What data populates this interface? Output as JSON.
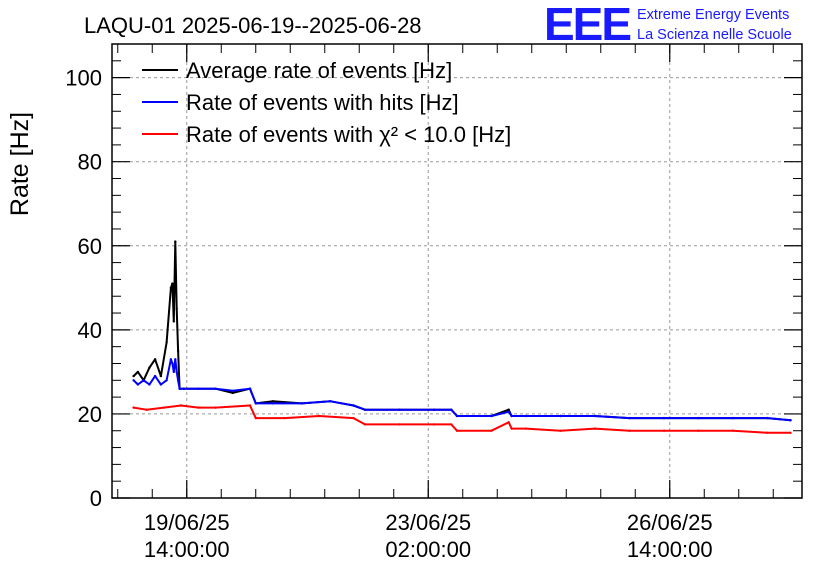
{
  "chart_data": {
    "type": "line",
    "title": "LAQU-01 2025-06-19--2025-06-28",
    "ylabel": "Rate [Hz]",
    "xlabel": "",
    "ylim": [
      0,
      108
    ],
    "yticks": [
      0,
      20,
      40,
      60,
      80,
      100
    ],
    "xlim": [
      "2025-06-18 12:00:00",
      "2025-06-28 12:00:00"
    ],
    "xticks": [
      {
        "t": "2025-06-19 14:00:00",
        "line1": "19/06/25",
        "line2": "14:00:00"
      },
      {
        "t": "2025-06-23 02:00:00",
        "line1": "23/06/25",
        "line2": "02:00:00"
      },
      {
        "t": "2025-06-26 14:00:00",
        "line1": "26/06/25",
        "line2": "14:00:00"
      }
    ],
    "grid": true,
    "legend_position": "top-left",
    "series": [
      {
        "name": "Average rate of events [Hz]",
        "color": "#000000",
        "x": [
          "2025-06-18 19:30",
          "2025-06-18 21:00",
          "2025-06-18 23:00",
          "2025-06-19 01:00",
          "2025-06-19 03:00",
          "2025-06-19 05:00",
          "2025-06-19 07:00",
          "2025-06-19 08:30",
          "2025-06-19 09:00",
          "2025-06-19 09:30",
          "2025-06-19 10:00",
          "2025-06-19 10:30",
          "2025-06-19 11:00",
          "2025-06-19 11:30",
          "2025-06-19 13:00",
          "2025-06-19 18:00",
          "2025-06-20 00:00",
          "2025-06-20 06:00",
          "2025-06-20 12:00",
          "2025-06-20 14:00",
          "2025-06-20 20:00",
          "2025-06-21 06:00",
          "2025-06-21 16:00",
          "2025-06-22 00:00",
          "2025-06-22 04:00",
          "2025-06-22 16:00",
          "2025-06-23 04:00",
          "2025-06-23 10:00",
          "2025-06-23 12:00",
          "2025-06-24 00:00",
          "2025-06-24 06:00",
          "2025-06-24 07:00",
          "2025-06-24 12:00",
          "2025-06-25 00:00",
          "2025-06-25 12:00",
          "2025-06-26 00:00",
          "2025-06-26 12:00",
          "2025-06-27 00:00",
          "2025-06-27 12:00",
          "2025-06-28 00:00",
          "2025-06-28 08:00"
        ],
        "y": [
          29,
          30,
          28,
          31,
          33,
          29,
          37,
          50,
          51,
          42,
          61,
          45,
          35,
          26,
          26,
          26,
          26,
          25,
          26,
          22.5,
          23,
          22.5,
          23,
          22,
          21,
          21,
          21,
          21,
          19.5,
          19.5,
          21,
          19.5,
          19.5,
          19.5,
          19.5,
          19,
          19,
          19,
          19,
          19,
          18.5
        ]
      },
      {
        "name": "Rate of events with hits [Hz]",
        "color": "#0000ff",
        "x": [
          "2025-06-18 19:30",
          "2025-06-18 21:00",
          "2025-06-18 23:00",
          "2025-06-19 01:00",
          "2025-06-19 03:00",
          "2025-06-19 05:00",
          "2025-06-19 07:00",
          "2025-06-19 08:30",
          "2025-06-19 09:00",
          "2025-06-19 09:30",
          "2025-06-19 10:00",
          "2025-06-19 10:30",
          "2025-06-19 11:00",
          "2025-06-19 11:30",
          "2025-06-19 13:00",
          "2025-06-19 18:00",
          "2025-06-20 00:00",
          "2025-06-20 06:00",
          "2025-06-20 12:00",
          "2025-06-20 14:00",
          "2025-06-20 20:00",
          "2025-06-21 06:00",
          "2025-06-21 16:00",
          "2025-06-22 00:00",
          "2025-06-22 04:00",
          "2025-06-22 16:00",
          "2025-06-23 04:00",
          "2025-06-23 10:00",
          "2025-06-23 12:00",
          "2025-06-24 00:00",
          "2025-06-24 06:00",
          "2025-06-24 07:00",
          "2025-06-24 12:00",
          "2025-06-25 00:00",
          "2025-06-25 12:00",
          "2025-06-26 00:00",
          "2025-06-26 12:00",
          "2025-06-27 00:00",
          "2025-06-27 12:00",
          "2025-06-28 00:00",
          "2025-06-28 08:00"
        ],
        "y": [
          28,
          27,
          28,
          27,
          29,
          27,
          28,
          33,
          32,
          30,
          33,
          30,
          28,
          26,
          26,
          26,
          26,
          25.5,
          26,
          22.5,
          22.5,
          22.5,
          23,
          22,
          21,
          21,
          21,
          21,
          19.5,
          19.5,
          20.5,
          19.5,
          19.5,
          19.5,
          19.5,
          19,
          19,
          19,
          19,
          19,
          18.5
        ]
      },
      {
        "name": "Rate of events with χ² < 10.0 [Hz]",
        "color": "#ff0000",
        "x": [
          "2025-06-18 19:30",
          "2025-06-19 00:00",
          "2025-06-19 06:00",
          "2025-06-19 12:00",
          "2025-06-19 18:00",
          "2025-06-20 00:00",
          "2025-06-20 12:00",
          "2025-06-20 14:00",
          "2025-06-21 00:00",
          "2025-06-21 12:00",
          "2025-06-22 00:00",
          "2025-06-22 04:00",
          "2025-06-22 16:00",
          "2025-06-23 04:00",
          "2025-06-23 10:00",
          "2025-06-23 12:00",
          "2025-06-24 00:00",
          "2025-06-24 06:00",
          "2025-06-24 07:00",
          "2025-06-24 12:00",
          "2025-06-25 00:00",
          "2025-06-25 12:00",
          "2025-06-26 00:00",
          "2025-06-26 12:00",
          "2025-06-27 00:00",
          "2025-06-27 12:00",
          "2025-06-28 00:00",
          "2025-06-28 08:00"
        ],
        "y": [
          21.5,
          21,
          21.5,
          22,
          21.5,
          21.5,
          22,
          19,
          19,
          19.5,
          19,
          17.5,
          17.5,
          17.5,
          17.5,
          16,
          16,
          18,
          16.5,
          16.5,
          16,
          16.5,
          16,
          16,
          16,
          16,
          15.5,
          15.5
        ]
      }
    ]
  }
}
